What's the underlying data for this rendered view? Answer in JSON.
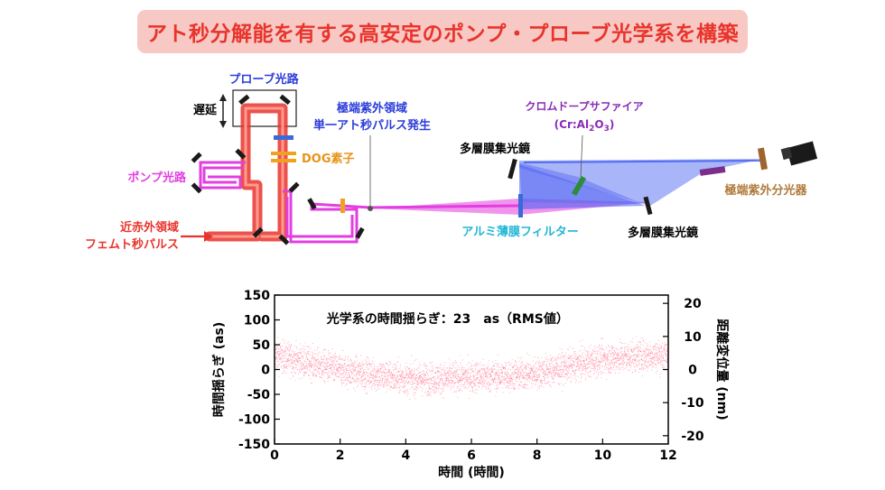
{
  "banner": {
    "title": "アト秒分解能を有する高安定のポンプ・プローブ光学系を構築"
  },
  "labels": {
    "probe_path": "プローブ光路",
    "delay": "遅延",
    "dog": "DOG素子",
    "pump_path": "ポンプ光路",
    "nir_line1": "近赤外領域",
    "nir_line2": "フェムト秒パルス",
    "xuv_line1": "極端紫外領域",
    "xuv_line2": "単一アト秒パルス発生",
    "cr_line1": "クロムドープサファイア",
    "cr_line2": "(Cr:Al",
    "cr_sub2": "2",
    "cr_mid": "O",
    "cr_sub3": "3",
    "cr_end": ")",
    "ml_mirror_top": "多層膜集光鏡",
    "ml_mirror_bottom": "多層膜集光鏡",
    "al_filter": "アルミ薄膜フィルター",
    "xuv_spectrometer": "極端紫外分光器"
  },
  "colors": {
    "banner_bg": "#f8c9c4",
    "banner_text": "#e8342c",
    "red_beam": "#e8342c",
    "pump_beam": "#e23ee0",
    "xuv_beam": "#3f5bf0",
    "label_blue": "#2a3bd9",
    "label_orange": "#e8931c",
    "label_magenta": "#e23ee0",
    "label_purple": "#8a2bb5",
    "label_cyan": "#22b6d6",
    "label_brown": "#b07a3a",
    "scatter": "#ff6f8f"
  },
  "chart_data": {
    "type": "scatter",
    "title": "光学系の時間揺らぎ：23　as（RMS値）",
    "xlabel": "時間 (時間)",
    "ylabel": "時間揺らぎ (as)",
    "y2label": "距離変位量 (nm)",
    "xlim": [
      0,
      12
    ],
    "ylim": [
      -150,
      150
    ],
    "y2lim": [
      -22.5,
      22.5
    ],
    "xticks": [
      "0",
      "2",
      "4",
      "6",
      "8",
      "10",
      "12"
    ],
    "yticks": [
      "150",
      "100",
      "50",
      "0",
      "-50",
      "-100",
      "-150"
    ],
    "y2ticks": [
      "20",
      "10",
      "0",
      "-10",
      "-20"
    ],
    "trend": {
      "x": [
        0,
        1,
        2,
        3,
        4,
        5,
        6,
        7,
        8,
        9,
        10,
        11,
        12
      ],
      "y": [
        30,
        15,
        0,
        -10,
        -17,
        -18,
        -14,
        -12,
        -6,
        8,
        22,
        28,
        30
      ]
    },
    "rms_spread_as": 23,
    "grid": false
  }
}
